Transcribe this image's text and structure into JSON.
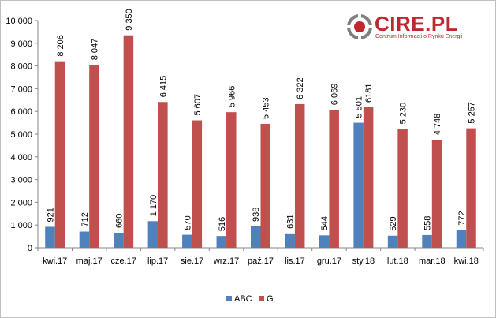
{
  "logo": {
    "word": "CIRE.PL",
    "subtitle": "Centrum Informacji o Rynku Energii",
    "colors": {
      "primary": "#c0282f",
      "secondary": "#7f7f7f"
    }
  },
  "chart_data": {
    "type": "bar",
    "categories": [
      "kwi.17",
      "maj.17",
      "cze.17",
      "lip.17",
      "sie.17",
      "wrz.17",
      "paź.17",
      "lis.17",
      "gru.17",
      "sty.18",
      "lut.18",
      "mar.18",
      "kwi.18"
    ],
    "series": [
      {
        "name": "ABC",
        "color": "#4f81bd",
        "values": [
          921,
          712,
          660,
          1170,
          570,
          516,
          938,
          631,
          544,
          5501,
          529,
          558,
          772
        ],
        "labels": [
          "921",
          "712",
          "660",
          "1 170",
          "570",
          "516",
          "938",
          "631",
          "544",
          "5 501",
          "529",
          "558",
          "772"
        ]
      },
      {
        "name": "G",
        "color": "#c0504d",
        "values": [
          8206,
          8047,
          9350,
          6415,
          5607,
          5966,
          5453,
          6322,
          6069,
          6181,
          5230,
          4748,
          5257
        ],
        "labels": [
          "8 206",
          "8 047",
          "9 350",
          "6 415",
          "5 607",
          "5 966",
          "5 453",
          "6 322",
          "6 069",
          "6181",
          "5 230",
          "4 748",
          "5 257"
        ]
      }
    ],
    "ylim": [
      0,
      10000
    ],
    "yticks": [
      0,
      1000,
      2000,
      3000,
      4000,
      5000,
      6000,
      7000,
      8000,
      9000,
      10000
    ],
    "ytick_labels": [
      "0",
      "1 000",
      "2 000",
      "3 000",
      "4 000",
      "5 000",
      "6 000",
      "7 000",
      "8 000",
      "9 000",
      "10 000"
    ],
    "grid": false,
    "legend_position": "bottom"
  }
}
